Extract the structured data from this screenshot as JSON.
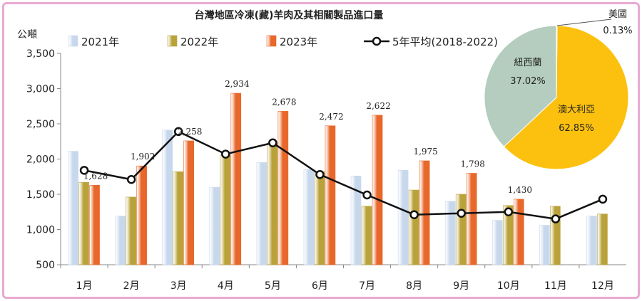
{
  "chart_data": {
    "type": "bar",
    "title": "台灣地區冷凍(藏)羊肉及其相關製品進口量",
    "ylabel": "公噸",
    "ylim": [
      500,
      3500
    ],
    "yticks": [
      "500",
      "1,000",
      "1,500",
      "2,000",
      "2,500",
      "3,000",
      "3,500"
    ],
    "categories": [
      "1月",
      "2月",
      "3月",
      "4月",
      "5月",
      "6月",
      "7月",
      "8月",
      "9月",
      "10月",
      "11月",
      "12月"
    ],
    "series": [
      {
        "name": "2021年",
        "kind": "bar",
        "color": "#c8d8ec",
        "values": [
          2110,
          1190,
          2410,
          1600,
          1950,
          1850,
          1760,
          1840,
          1400,
          1130,
          1060,
          1190
        ]
      },
      {
        "name": "2022年",
        "kind": "bar",
        "color": "#b9a23a",
        "values": [
          1670,
          1460,
          1820,
          2050,
          2230,
          1820,
          1330,
          1560,
          1500,
          1340,
          1330,
          1220
        ]
      },
      {
        "name": "2023年",
        "kind": "bar",
        "color": "#e8672a",
        "values": [
          1628,
          1902,
          2258,
          2934,
          2678,
          2472,
          2622,
          1975,
          1798,
          1430,
          null,
          null
        ]
      },
      {
        "name": "5年平均(2018-2022)",
        "kind": "line",
        "color": "#111111",
        "values": [
          1840,
          1710,
          2390,
          2070,
          2230,
          1780,
          1490,
          1210,
          1230,
          1250,
          1150,
          1430
        ]
      }
    ],
    "data_labels_2023": [
      "1,628",
      "1,902",
      "2,258",
      "2,934",
      "2,678",
      "2,472",
      "2,622",
      "1,975",
      "1,798",
      "1,430"
    ],
    "pie": {
      "slices": [
        {
          "label": "澳大利亞",
          "pct_text": "62.85%",
          "value": 62.85,
          "color": "#fcc10f"
        },
        {
          "label": "紐西蘭",
          "pct_text": "37.02%",
          "value": 37.02,
          "color": "#b4cdbe"
        },
        {
          "label": "美國",
          "pct_text": "0.13%",
          "value": 0.13,
          "color": "#c9d8d0"
        }
      ]
    },
    "legend_placement": "top",
    "grid": false
  }
}
